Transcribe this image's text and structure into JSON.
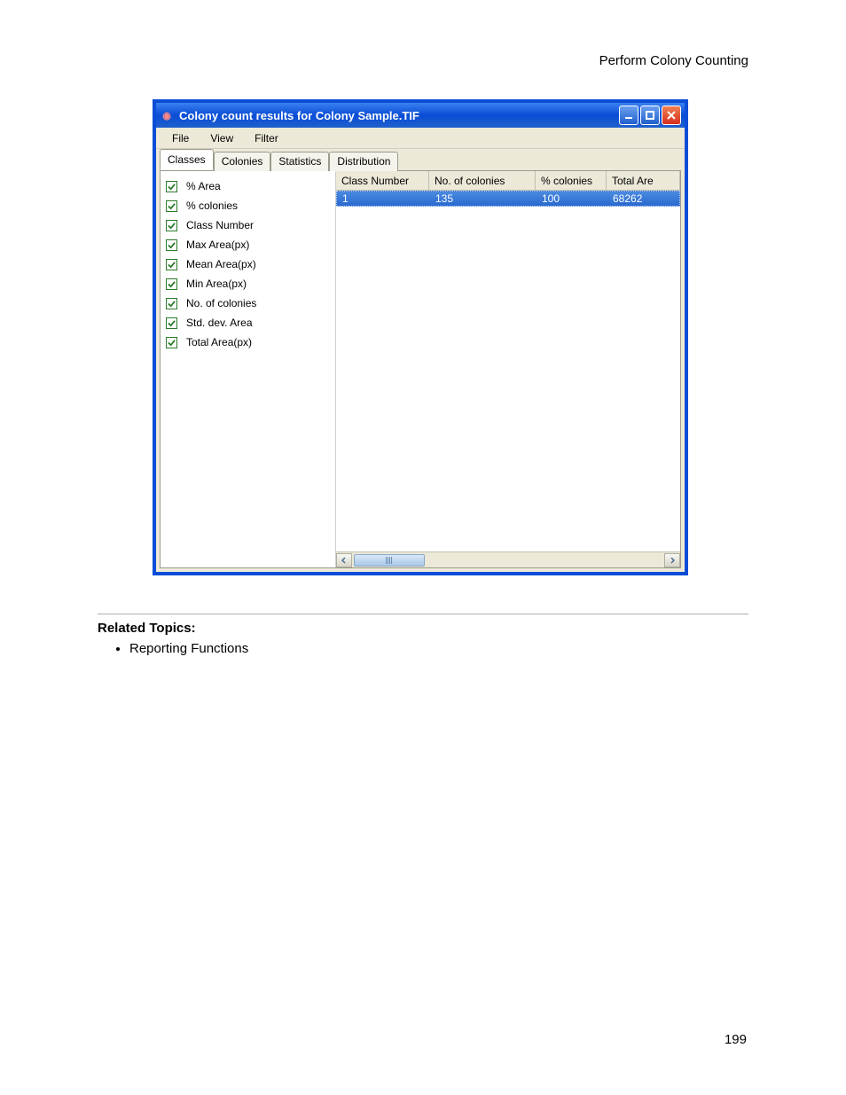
{
  "page": {
    "header": "Perform Colony Counting",
    "number": "199",
    "related_heading": "Related Topics:",
    "related_items": [
      "Reporting Functions"
    ]
  },
  "window": {
    "title": "Colony count results for Colony Sample.TIF",
    "menus": [
      "File",
      "View",
      "Filter"
    ],
    "tabs": [
      "Classes",
      "Colonies",
      "Statistics",
      "Distribution"
    ],
    "active_tab_index": 0,
    "checkbox_items": [
      {
        "label": "% Area",
        "checked": true
      },
      {
        "label": "% colonies",
        "checked": true
      },
      {
        "label": "Class Number",
        "checked": true
      },
      {
        "label": "Max Area(px)",
        "checked": true
      },
      {
        "label": "Mean Area(px)",
        "checked": true
      },
      {
        "label": "Min Area(px)",
        "checked": true
      },
      {
        "label": "No. of colonies",
        "checked": true
      },
      {
        "label": "Std. dev. Area",
        "checked": true
      },
      {
        "label": "Total Area(px)",
        "checked": true
      }
    ],
    "grid": {
      "columns": [
        "Class Number",
        "No. of colonies",
        "% colonies",
        "Total Are"
      ],
      "rows": [
        [
          "1",
          "135",
          "100",
          "68262"
        ]
      ],
      "selected_row": 0,
      "colors": {
        "selected_bg_top": "#4a8ae0",
        "selected_bg_bottom": "#2a6ad0",
        "selected_text": "#ffffff",
        "header_bg": "#ece9d8"
      }
    }
  },
  "colors": {
    "window_border": "#0a4dd6",
    "titlebar_text": "#ffffff",
    "client_bg": "#ece9d8",
    "tab_active_bg": "#ffffff",
    "check_border": "#2a7a2a",
    "check_mark": "#2a7a2a"
  }
}
